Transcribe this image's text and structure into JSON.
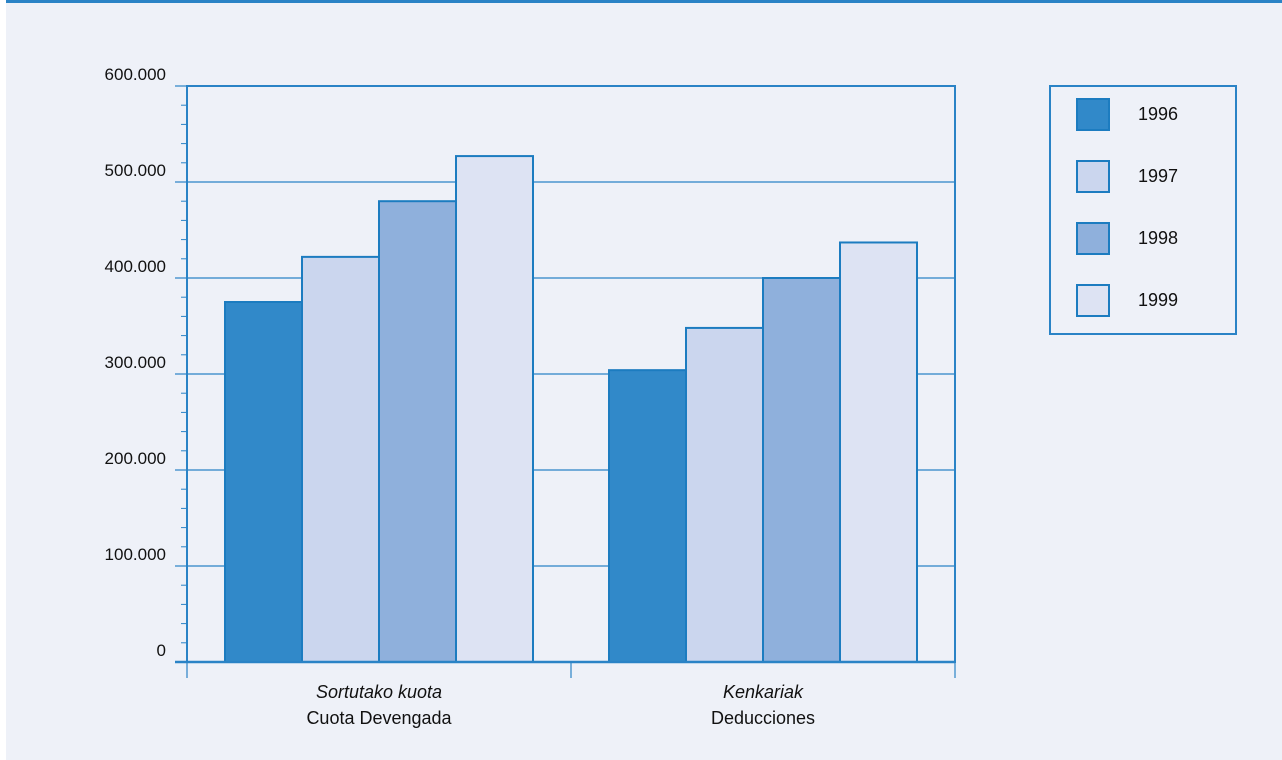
{
  "chart_data": {
    "type": "bar",
    "categories": [
      {
        "line1": "Sortutako kuota",
        "line2": "Cuota Devengada"
      },
      {
        "line1": "Kenkariak",
        "line2": "Deducciones"
      }
    ],
    "series": [
      {
        "name": "1996",
        "color": "#3189c9",
        "values": [
          375000,
          304000
        ]
      },
      {
        "name": "1997",
        "color": "#cbd6ee",
        "values": [
          422000,
          348000
        ]
      },
      {
        "name": "1998",
        "color": "#8fb0dc",
        "values": [
          480000,
          400000
        ]
      },
      {
        "name": "1999",
        "color": "#dde3f3",
        "values": [
          527000,
          437000
        ]
      }
    ],
    "ylim": [
      0,
      600000
    ],
    "yticks": [
      0,
      100000,
      200000,
      300000,
      400000,
      500000,
      600000
    ],
    "ytick_labels": [
      "0",
      "100.000",
      "200.000",
      "300.000",
      "400.000",
      "500.000",
      "600.000"
    ],
    "grid": true,
    "legend_position": "top-right",
    "colors": {
      "axis": "#2a83c6",
      "outline": "#1c7cc0",
      "background": "#eef1f8"
    }
  }
}
